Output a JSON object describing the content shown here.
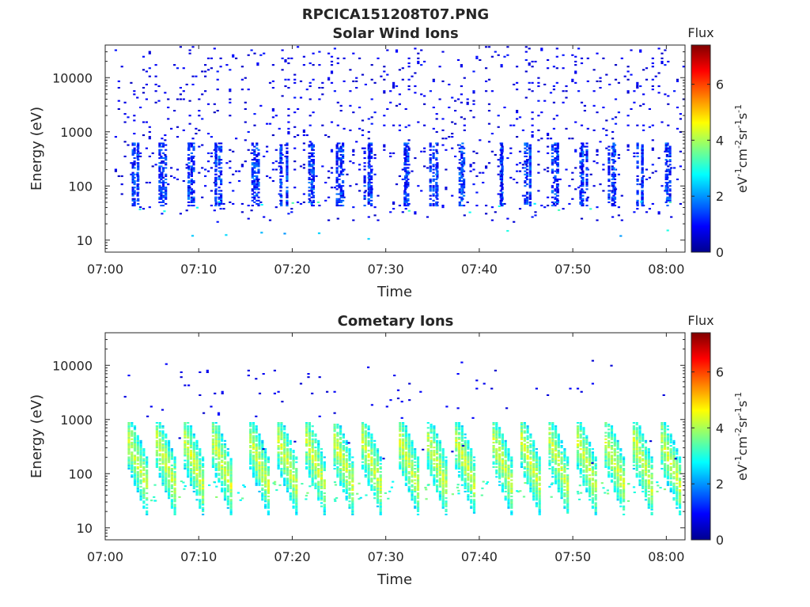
{
  "figure": {
    "title": "RPCICA151208T07.PNG"
  },
  "colormap": {
    "name": "jet",
    "stops": [
      "#00008f",
      "#0000ff",
      "#0080ff",
      "#00ffff",
      "#80ff80",
      "#ffff00",
      "#ff8000",
      "#ff0000",
      "#800000"
    ]
  },
  "chart_data": [
    {
      "type": "heatmap",
      "title": "Solar Wind Ions",
      "xlabel": "Time",
      "ylabel": "Energy (eV)",
      "xlim": [
        "07:00",
        "08:02"
      ],
      "ylim": [
        6,
        40000
      ],
      "yscale": "log",
      "xticks": [
        "07:00",
        "07:10",
        "07:20",
        "07:30",
        "07:40",
        "07:50",
        "08:00"
      ],
      "yticks": [
        10,
        100,
        1000,
        10000
      ],
      "ytick_labels": [
        "10",
        "100",
        "1000",
        "10000"
      ],
      "colorbar": {
        "label": "Flux",
        "units": "eV-1cm-2sr-1s-1",
        "range": [
          0,
          7.4
        ],
        "ticks": [
          0,
          2,
          4,
          6
        ]
      },
      "scan_times": [
        "07:03",
        "07:06",
        "07:09",
        "07:12",
        "07:16",
        "07:19",
        "07:22",
        "07:25",
        "07:28",
        "07:32",
        "07:35",
        "07:38",
        "07:42",
        "07:45",
        "07:48",
        "07:51",
        "07:54",
        "07:57",
        "08:00"
      ],
      "grid": false,
      "legend": "colorbar-right"
    },
    {
      "type": "heatmap",
      "title": "Cometary Ions",
      "xlabel": "Time",
      "ylabel": "Energy (eV)",
      "xlim": [
        "07:00",
        "08:02"
      ],
      "ylim": [
        6,
        40000
      ],
      "yscale": "log",
      "xticks": [
        "07:00",
        "07:10",
        "07:20",
        "07:30",
        "07:40",
        "07:50",
        "08:00"
      ],
      "yticks": [
        10,
        100,
        1000,
        10000
      ],
      "ytick_labels": [
        "10",
        "100",
        "1000",
        "10000"
      ],
      "colorbar": {
        "label": "Flux",
        "units": "eV-1cm-2sr-1s-1",
        "range": [
          0,
          7.4
        ],
        "ticks": [
          0,
          2,
          4,
          6
        ]
      },
      "scan_times": [
        "07:03",
        "07:06",
        "07:09",
        "07:12",
        "07:16",
        "07:19",
        "07:22",
        "07:25",
        "07:28",
        "07:32",
        "07:35",
        "07:38",
        "07:42",
        "07:45",
        "07:48",
        "07:51",
        "07:54",
        "07:57",
        "08:00"
      ],
      "grid": false,
      "legend": "colorbar-right"
    }
  ]
}
